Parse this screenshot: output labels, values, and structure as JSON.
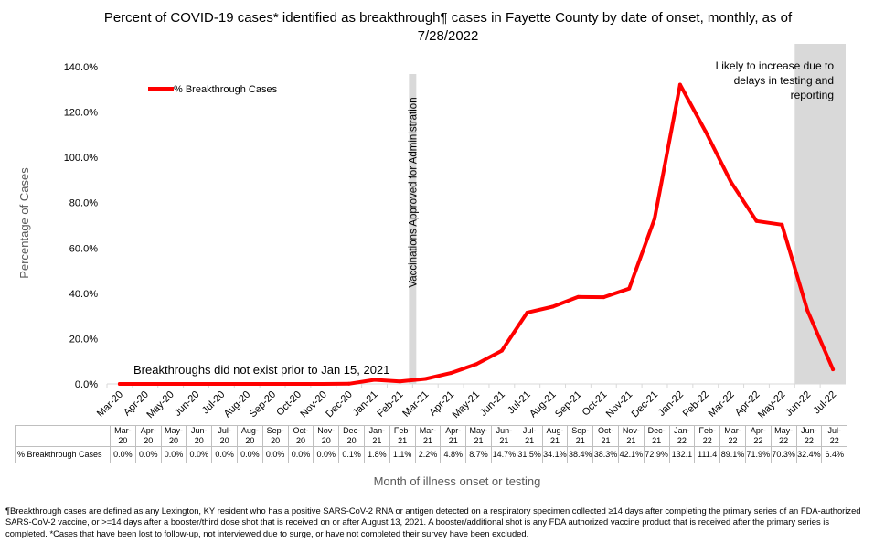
{
  "chart_data": {
    "type": "line",
    "title": "Percent of COVID-19 cases* identified as breakthrough¶ cases in Fayette County by date of onset, monthly, as of 7/28/2022",
    "xlabel": "Month of illness onset or testing",
    "ylabel": "Percentage of Cases",
    "ylim": [
      0,
      140
    ],
    "yticks": [
      "0.0%",
      "20.0%",
      "40.0%",
      "60.0%",
      "80.0%",
      "100.0%",
      "120.0%",
      "140.0%"
    ],
    "grid": false,
    "legend_position": "top-left",
    "categories": [
      "Mar-20",
      "Apr-20",
      "May-20",
      "Jun-20",
      "Jul-20",
      "Aug-20",
      "Sep-20",
      "Oct-20",
      "Nov-20",
      "Dec-20",
      "Jan-21",
      "Feb-21",
      "Mar-21",
      "Apr-21",
      "May-21",
      "Jun-21",
      "Jul-21",
      "Aug-21",
      "Sep-21",
      "Oct-21",
      "Nov-21",
      "Dec-21",
      "Jan-22",
      "Feb-22",
      "Mar-22",
      "Apr-22",
      "May-22",
      "Jun-22",
      "Jul-22"
    ],
    "table_rows": [
      [
        "Mar-",
        "20"
      ],
      [
        "Apr-",
        "20"
      ],
      [
        "May-",
        "20"
      ],
      [
        "Jun-",
        "20"
      ],
      [
        "Jul-",
        "20"
      ],
      [
        "Aug-",
        "20"
      ],
      [
        "Sep-",
        "20"
      ],
      [
        "Oct-",
        "20"
      ],
      [
        "Nov-",
        "20"
      ],
      [
        "Dec-",
        "20"
      ],
      [
        "Jan-",
        "21"
      ],
      [
        "Feb-",
        "21"
      ],
      [
        "Mar-",
        "21"
      ],
      [
        "Apr-",
        "21"
      ],
      [
        "May-",
        "21"
      ],
      [
        "Jun-",
        "21"
      ],
      [
        "Jul-",
        "21"
      ],
      [
        "Aug-",
        "21"
      ],
      [
        "Sep-",
        "21"
      ],
      [
        "Oct-",
        "21"
      ],
      [
        "Nov-",
        "21"
      ],
      [
        "Dec-",
        "21"
      ],
      [
        "Jan-",
        "22"
      ],
      [
        "Feb-",
        "22"
      ],
      [
        "Mar-",
        "22"
      ],
      [
        "Apr-",
        "22"
      ],
      [
        "May-",
        "22"
      ],
      [
        "Jun-",
        "22"
      ],
      [
        "Jul-",
        "22"
      ]
    ],
    "series": [
      {
        "name": "% Breakthrough Cases",
        "color": "#ff0000",
        "values": [
          0.0,
          0.0,
          0.0,
          0.0,
          0.0,
          0.0,
          0.0,
          0.0,
          0.0,
          0.1,
          1.8,
          1.1,
          2.2,
          4.8,
          8.7,
          14.7,
          31.5,
          34.1,
          38.4,
          38.3,
          42.1,
          72.9,
          132.1,
          111.4,
          89.1,
          71.9,
          70.3,
          32.4,
          6.4
        ],
        "labels": [
          "0.0%",
          "0.0%",
          "0.0%",
          "0.0%",
          "0.0%",
          "0.0%",
          "0.0%",
          "0.0%",
          "0.0%",
          "0.1%",
          "1.8%",
          "1.1%",
          "2.2%",
          "4.8%",
          "8.7%",
          "14.7%",
          "31.5%",
          "34.1%",
          "38.4%",
          "38.3%",
          "42.1%",
          "72.9%",
          "132.1",
          "111.4",
          "89.1%",
          "71.9%",
          "70.3%",
          "32.4%",
          "6.4%"
        ]
      }
    ],
    "annotations": {
      "vaccination_line": {
        "after": "Feb-21",
        "text": "Vaccinations Approved for Administration"
      },
      "no_breakthrough_note": "Breakthroughs did not exist prior to Jan 15, 2021",
      "shaded_region": {
        "from": "Jun-22",
        "to": "Jul-22",
        "text_lines": [
          "Likely to increase due to",
          "delays in testing and",
          "reporting"
        ]
      }
    },
    "colors": {
      "shaded_region": "#d9d9d9",
      "axis_text": "#595959"
    }
  },
  "footnote": "¶Breakthrough cases are defined as any Lexington, KY resident who has a positive SARS-CoV-2 RNA or antigen detected on a respiratory specimen collected ≥14 days after completing the primary series of an FDA-authorized SARS-CoV-2 vaccine, or >=14 days after a booster/third dose shot that is received on or after August 13, 2021.  A booster/additional shot is any FDA authorized vaccine product that is received after the primary series is completed.  *Cases that have been lost to follow-up, not interviewed due to surge, or have not completed their survey have been excluded."
}
